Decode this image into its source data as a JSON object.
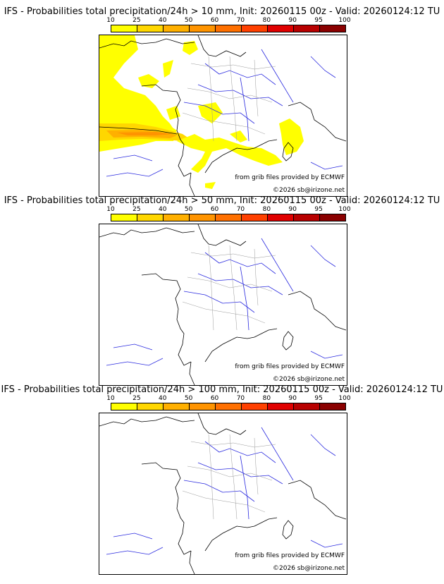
{
  "panels": [
    {
      "title": "IFS - Probabilities total precipitation/24h > 10 mm, Init: 20260115 00z - Valid: 20260124:12 TU"
    },
    {
      "title": "IFS - Probabilities total precipitation/24h > 50 mm, Init: 20260115 00z - Valid: 20260124:12 TU"
    },
    {
      "title": "IFS - Probabilities total precipitation/24h > 100 mm, Init: 20260115 00z - Valid: 20260124:12 TU"
    }
  ],
  "colorbar": {
    "ticks": [
      "10",
      "25",
      "40",
      "50",
      "60",
      "70",
      "80",
      "90",
      "95",
      "100"
    ],
    "colors": [
      "#ffff00",
      "#ffd700",
      "#ffb000",
      "#ff9400",
      "#ff7000",
      "#ff4000",
      "#e00000",
      "#b80000",
      "#8a0000"
    ]
  },
  "credits": {
    "source": "from grib files provided by ECMWF",
    "copyright": "©2026 sb@irizone.net"
  }
}
